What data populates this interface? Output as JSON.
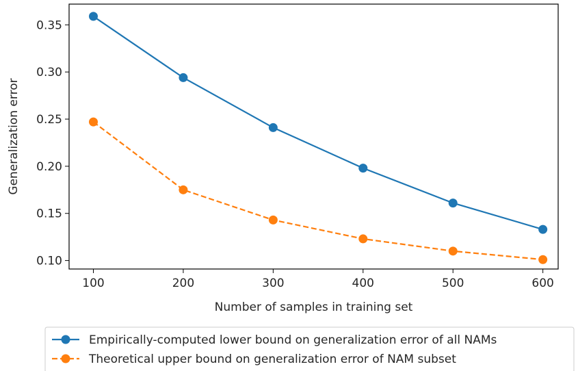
{
  "chart_data": {
    "type": "line",
    "xlabel": "Number of samples in training set",
    "ylabel": "Generalization error",
    "x": [
      100,
      200,
      300,
      400,
      500,
      600
    ],
    "xticks": [
      "100",
      "200",
      "300",
      "400",
      "500",
      "600"
    ],
    "yticks": [
      "0.10",
      "0.15",
      "0.20",
      "0.25",
      "0.30",
      "0.35"
    ],
    "xlim": [
      73,
      617
    ],
    "ylim": [
      0.091,
      0.372
    ],
    "grid": false,
    "legend_position": "below",
    "series": [
      {
        "name": "Empirically-computed lower bound on generalization error of all NAMs",
        "values": [
          0.359,
          0.294,
          0.241,
          0.198,
          0.161,
          0.133
        ],
        "color": "#1f77b4",
        "line_style": "solid",
        "marker": "circle"
      },
      {
        "name": "Theoretical upper bound on generalization error of NAM subset",
        "values": [
          0.247,
          0.175,
          0.143,
          0.123,
          0.11,
          0.101
        ],
        "color": "#ff7f0e",
        "line_style": "dashed",
        "marker": "circle"
      }
    ]
  }
}
